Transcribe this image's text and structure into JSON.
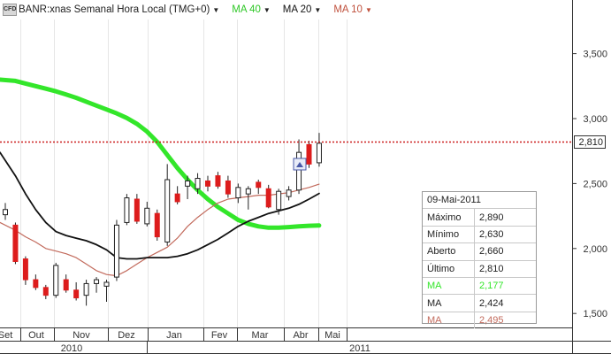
{
  "header": {
    "logo_text": "CFD",
    "title": "BANR:xnas Semanal Hora Local (TMG+0)",
    "ma40_label": "MA 40",
    "ma20_label": "MA 20",
    "ma10_label": "MA 10"
  },
  "colors": {
    "up": "#ffffff",
    "down": "#dd1c1c",
    "ma40": "#33e62a",
    "ma20": "#111111",
    "ma10": "#c26a5c",
    "price_line": "#cc1f1f"
  },
  "price_axis": {
    "ticks": [
      "3,500",
      "3,000",
      "2,500",
      "2,000",
      "1,500"
    ],
    "current_price": "2,810"
  },
  "time_axis": {
    "months": [
      "Set",
      "Out",
      "Nov",
      "Dez",
      "Jan",
      "Fev",
      "Mar",
      "Abr",
      "Mai"
    ],
    "years": [
      "2010",
      "2011"
    ]
  },
  "info_box": {
    "date": "09-Mai-2011",
    "rows": [
      {
        "label": "Máximo",
        "value": "2,890",
        "color": "#222222"
      },
      {
        "label": "Mínimo",
        "value": "2,630",
        "color": "#222222"
      },
      {
        "label": "Aberto",
        "value": "2,660",
        "color": "#222222"
      },
      {
        "label": "Último",
        "value": "2,810",
        "color": "#222222"
      },
      {
        "label": "MA",
        "value": "2,177",
        "color": "#33e62a"
      },
      {
        "label": "MA",
        "value": "2,424",
        "color": "#222222"
      },
      {
        "label": "MA",
        "value": "2,495",
        "color": "#c26a5c"
      }
    ]
  },
  "chart_data": {
    "type": "candlestick",
    "ylim": [
      1300,
      3900
    ],
    "candles": [
      {
        "o": 2260,
        "h": 2350,
        "l": 2220,
        "c": 2300
      },
      {
        "o": 2180,
        "h": 2200,
        "l": 1880,
        "c": 1900
      },
      {
        "o": 1920,
        "h": 1940,
        "l": 1720,
        "c": 1760
      },
      {
        "o": 1760,
        "h": 1800,
        "l": 1680,
        "c": 1700
      },
      {
        "o": 1700,
        "h": 1720,
        "l": 1610,
        "c": 1640
      },
      {
        "o": 1640,
        "h": 1890,
        "l": 1620,
        "c": 1870
      },
      {
        "o": 1760,
        "h": 1800,
        "l": 1660,
        "c": 1680
      },
      {
        "o": 1680,
        "h": 1740,
        "l": 1600,
        "c": 1620
      },
      {
        "o": 1640,
        "h": 1760,
        "l": 1560,
        "c": 1730
      },
      {
        "o": 1730,
        "h": 1780,
        "l": 1660,
        "c": 1760
      },
      {
        "o": 1710,
        "h": 1760,
        "l": 1590,
        "c": 1740
      },
      {
        "o": 1780,
        "h": 2220,
        "l": 1750,
        "c": 2180
      },
      {
        "o": 2200,
        "h": 2420,
        "l": 2180,
        "c": 2390
      },
      {
        "o": 2380,
        "h": 2420,
        "l": 2190,
        "c": 2210
      },
      {
        "o": 2190,
        "h": 2360,
        "l": 2170,
        "c": 2310
      },
      {
        "o": 2270,
        "h": 2300,
        "l": 2060,
        "c": 2090
      },
      {
        "o": 2050,
        "h": 2650,
        "l": 2020,
        "c": 2530
      },
      {
        "o": 2420,
        "h": 2480,
        "l": 2340,
        "c": 2360
      },
      {
        "o": 2480,
        "h": 2560,
        "l": 2380,
        "c": 2520
      },
      {
        "o": 2460,
        "h": 2580,
        "l": 2420,
        "c": 2540
      },
      {
        "o": 2520,
        "h": 2560,
        "l": 2440,
        "c": 2480
      },
      {
        "o": 2560,
        "h": 2590,
        "l": 2460,
        "c": 2480
      },
      {
        "o": 2520,
        "h": 2560,
        "l": 2390,
        "c": 2420
      },
      {
        "o": 2390,
        "h": 2500,
        "l": 2350,
        "c": 2470
      },
      {
        "o": 2420,
        "h": 2480,
        "l": 2300,
        "c": 2460
      },
      {
        "o": 2510,
        "h": 2530,
        "l": 2420,
        "c": 2470
      },
      {
        "o": 2460,
        "h": 2490,
        "l": 2310,
        "c": 2320
      },
      {
        "o": 2300,
        "h": 2460,
        "l": 2260,
        "c": 2440
      },
      {
        "o": 2400,
        "h": 2480,
        "l": 2370,
        "c": 2450
      },
      {
        "o": 2450,
        "h": 2840,
        "l": 2420,
        "c": 2740
      },
      {
        "o": 2800,
        "h": 2830,
        "l": 2620,
        "c": 2650
      },
      {
        "o": 2660,
        "h": 2890,
        "l": 2630,
        "c": 2810
      }
    ],
    "ma40": [
      3300,
      3290,
      3270,
      3250,
      3230,
      3210,
      3185,
      3160,
      3130,
      3100,
      3070,
      3040,
      3005,
      2960,
      2900,
      2820,
      2720,
      2620,
      2530,
      2450,
      2380,
      2320,
      2270,
      2220,
      2190,
      2170,
      2160,
      2160,
      2165,
      2170,
      2175,
      2177
    ],
    "ma20": [
      2740,
      2560,
      2420,
      2300,
      2200,
      2130,
      2100,
      2080,
      2060,
      2030,
      1990,
      1930,
      1920,
      1920,
      1930,
      1930,
      1930,
      1940,
      1960,
      1990,
      2030,
      2070,
      2120,
      2170,
      2210,
      2240,
      2270,
      2290,
      2310,
      2340,
      2380,
      2424
    ],
    "ma10": [
      2200,
      2140,
      2090,
      2050,
      2000,
      1980,
      1960,
      1930,
      1880,
      1830,
      1800,
      1790,
      1830,
      1880,
      1930,
      1970,
      2010,
      2080,
      2170,
      2240,
      2300,
      2350,
      2380,
      2390,
      2400,
      2410,
      2410,
      2420,
      2430,
      2450,
      2470,
      2495
    ]
  }
}
